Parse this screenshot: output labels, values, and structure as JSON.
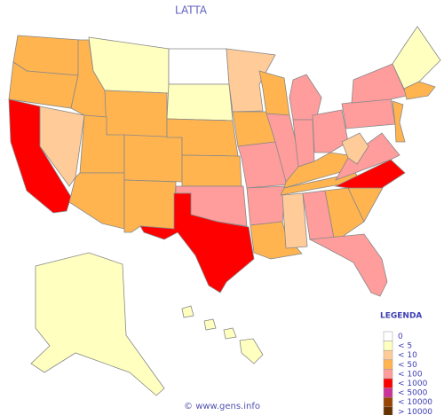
{
  "title": "LATTA",
  "legend": {
    "title": "LEGENDA",
    "items": [
      {
        "label": "0",
        "color": "#ffffff"
      },
      {
        "label": "< 5",
        "color": "#ffffc0"
      },
      {
        "label": "< 10",
        "color": "#ffcc99"
      },
      {
        "label": "< 50",
        "color": "#ffb450"
      },
      {
        "label": "< 100",
        "color": "#ff9c9c"
      },
      {
        "label": "< 1000",
        "color": "#ff0000"
      },
      {
        "label": "< 5000",
        "color": "#cc3399"
      },
      {
        "label": "< 10000",
        "color": "#994400"
      },
      {
        "label": "> 10000",
        "color": "#663300"
      }
    ]
  },
  "footer": "© www.gens.info"
}
